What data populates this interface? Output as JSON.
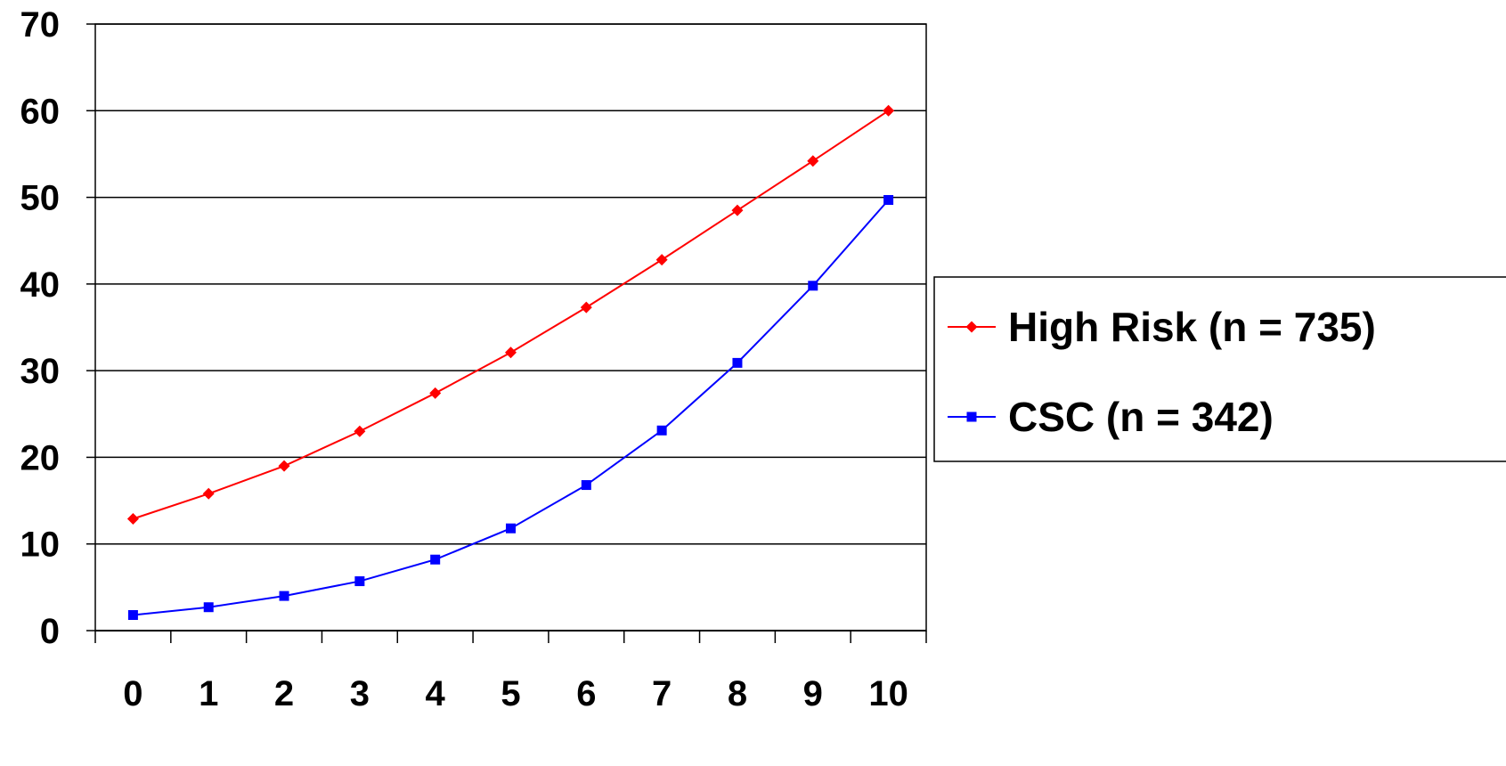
{
  "chart_data": {
    "type": "line",
    "title": "",
    "xlabel": "",
    "ylabel": "",
    "categories": [
      "0",
      "1",
      "2",
      "3",
      "4",
      "5",
      "6",
      "7",
      "8",
      "9",
      "10"
    ],
    "ylim": [
      0,
      70
    ],
    "yticks": [
      0,
      10,
      20,
      30,
      40,
      50,
      60,
      70
    ],
    "grid": "horizontal",
    "legend_position": "right",
    "series": [
      {
        "name": "High Risk (n = 735)",
        "color": "#ff0000",
        "marker": "diamond",
        "values": [
          12.9,
          15.8,
          19.0,
          23.0,
          27.4,
          32.1,
          37.3,
          42.8,
          48.5,
          54.2,
          60.0
        ]
      },
      {
        "name": "CSC (n = 342)",
        "color": "#0000ff",
        "marker": "square",
        "values": [
          1.8,
          2.7,
          4.0,
          5.7,
          8.2,
          11.8,
          16.8,
          23.1,
          30.9,
          39.8,
          49.7
        ]
      }
    ]
  }
}
